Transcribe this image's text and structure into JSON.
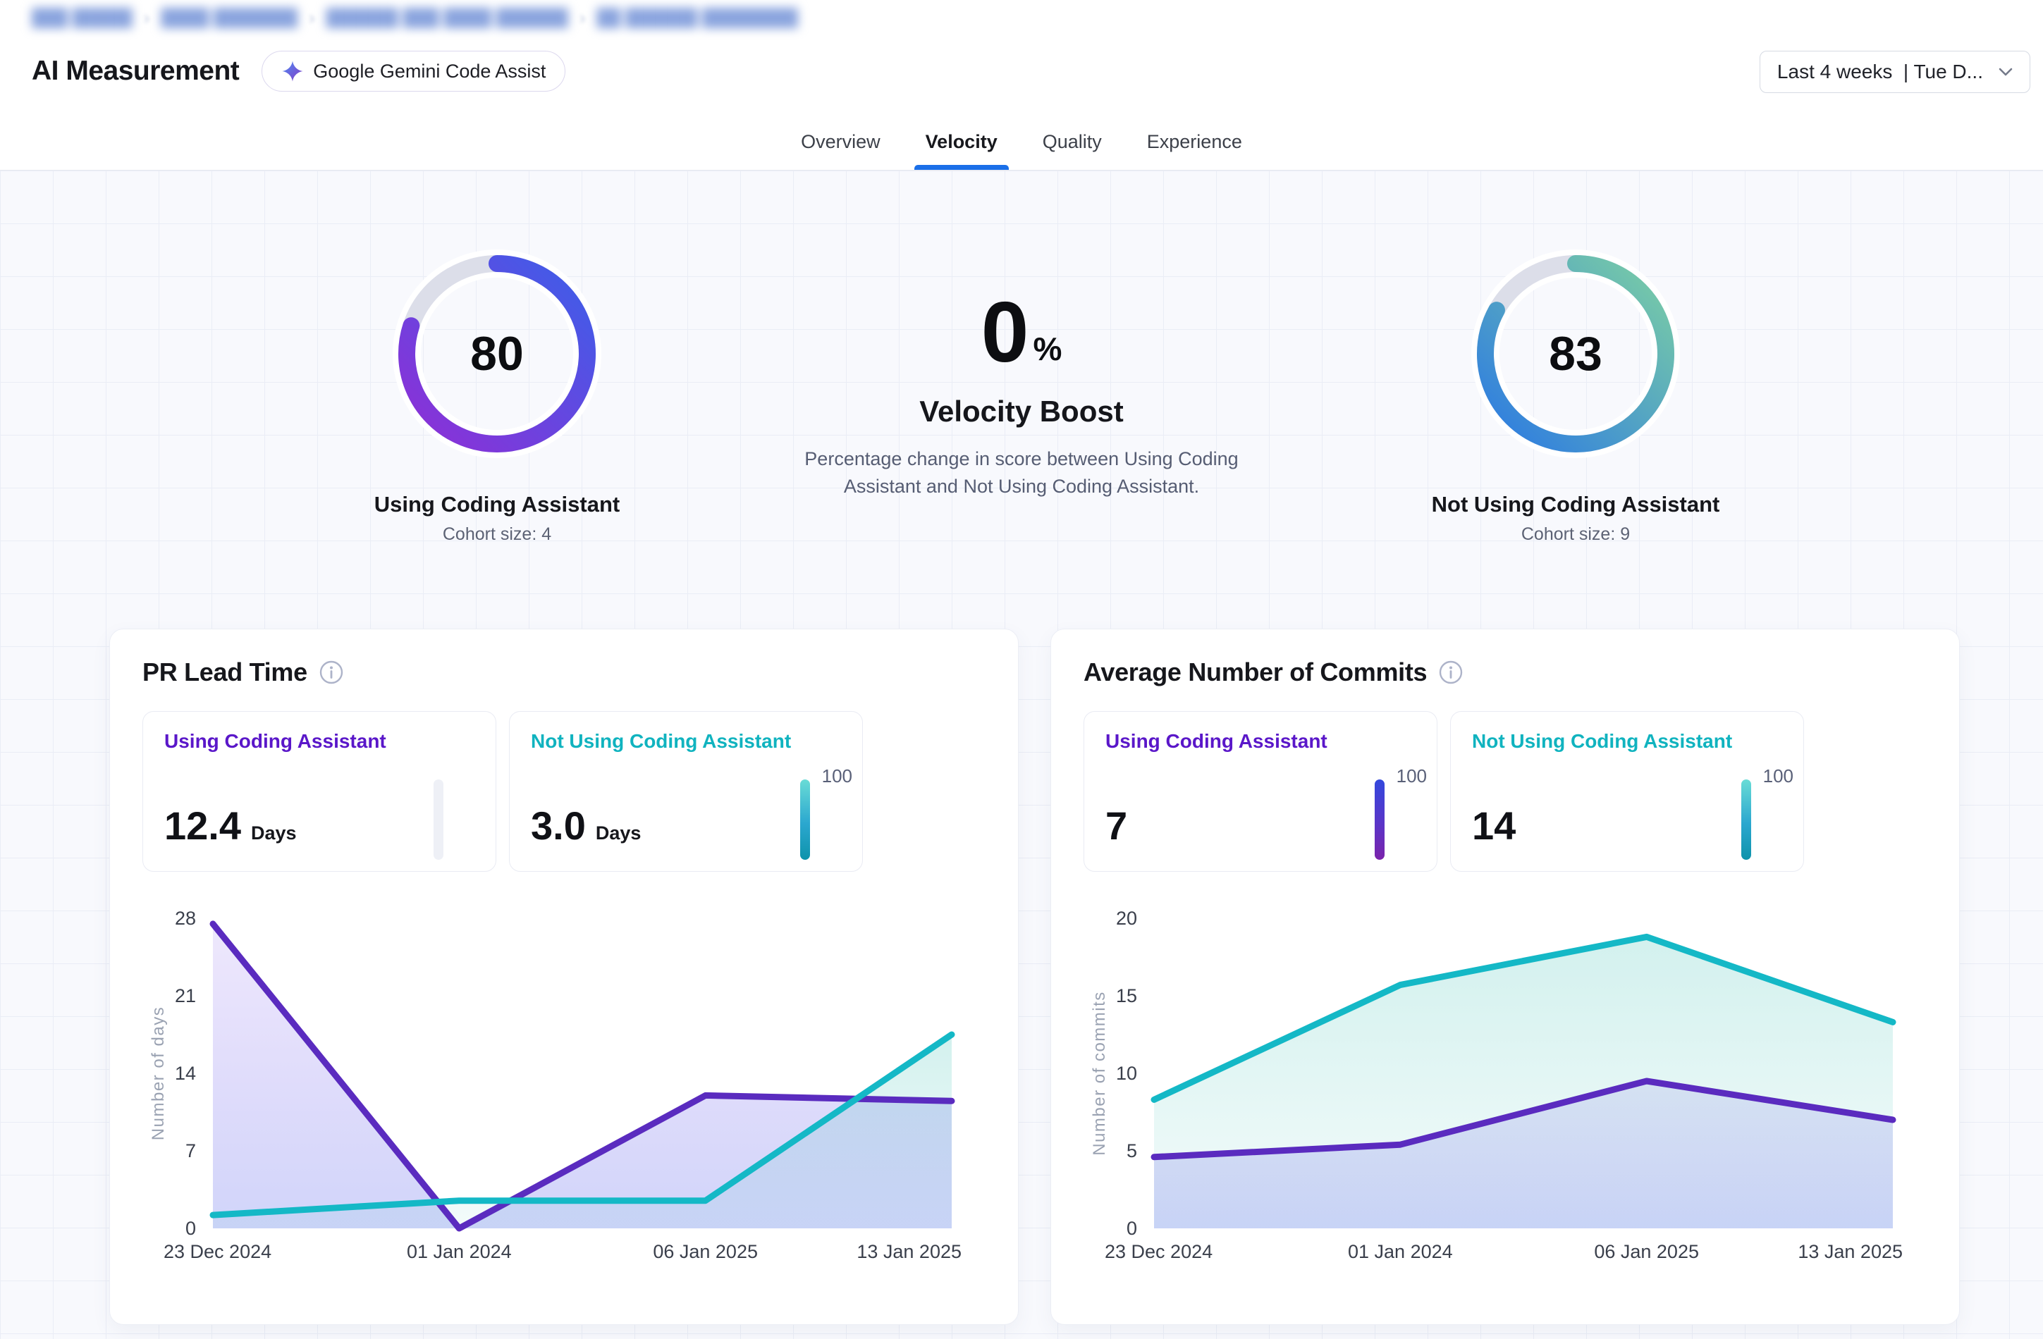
{
  "breadcrumb": {
    "segments": [
      "███ █████",
      "████ ███████",
      "██████ ███ ████ ██████",
      "██ ██████ ████████"
    ],
    "separator": "›"
  },
  "header": {
    "title": "AI Measurement",
    "badge": {
      "label": "Google Gemini Code Assist",
      "icon": "gemini-sparkle-icon"
    },
    "date_filter": {
      "value": "Last 4 weeks  | Tue D...",
      "icon": "chevron-down-icon"
    }
  },
  "tabs": [
    {
      "label": "Overview",
      "active": false
    },
    {
      "label": "Velocity",
      "active": true
    },
    {
      "label": "Quality",
      "active": false
    },
    {
      "label": "Experience",
      "active": false
    }
  ],
  "summary": {
    "left_gauge": {
      "value": "80",
      "percent": 80,
      "label": "Using Coding Assistant",
      "cohort": "Cohort size: 4",
      "gradient_from": "#8f2ed6",
      "gradient_to": "#3c5fe9"
    },
    "boost": {
      "value": "0",
      "unit": "%",
      "title": "Velocity Boost",
      "description": "Percentage change in score between Using Coding Assistant and Not Using Coding Assistant."
    },
    "right_gauge": {
      "value": "83",
      "percent": 83,
      "label": "Not Using Coding Assistant",
      "cohort": "Cohort size: 9",
      "gradient_from": "#2b79e3",
      "gradient_to": "#7ccfa4"
    }
  },
  "cards": [
    {
      "title": "PR Lead Time",
      "stats": [
        {
          "label": "Using Coding Assistant",
          "value": "12.4",
          "suffix": "Days",
          "theme": "purple",
          "bar": {
            "type": "empty",
            "label": ""
          }
        },
        {
          "label": "Not Using Coding Assistant",
          "value": "3.0",
          "suffix": "Days",
          "theme": "teal",
          "bar": {
            "type": "teal",
            "label": "100"
          }
        }
      ]
    },
    {
      "title": "Average Number of Commits",
      "stats": [
        {
          "label": "Using Coding Assistant",
          "value": "7",
          "suffix": "",
          "theme": "purple",
          "bar": {
            "type": "purple",
            "label": "100"
          }
        },
        {
          "label": "Not Using Coding Assistant",
          "value": "14",
          "suffix": "",
          "theme": "teal",
          "bar": {
            "type": "teal",
            "label": "100"
          }
        }
      ]
    }
  ],
  "chart_data": [
    {
      "type": "area",
      "title": "PR Lead Time",
      "xlabel": "",
      "ylabel": "Number of days",
      "categories": [
        "23 Dec 2024",
        "01 Jan 2024",
        "06 Jan 2025",
        "13 Jan 2025"
      ],
      "yticks": [
        0,
        7,
        14,
        21,
        28
      ],
      "ylim": [
        0,
        28
      ],
      "grid": false,
      "legend_position": "none",
      "series": [
        {
          "name": "Using Coding Assistant",
          "color": "#5a2bbf",
          "fill_top": "rgba(122,77,235,0.13)",
          "fill_bottom": "rgba(101,115,238,0.30)",
          "values": [
            27.5,
            0,
            12,
            11.5
          ]
        },
        {
          "name": "Not Using Coding Assistant",
          "color": "#14b8c6",
          "fill_top": "rgba(34,184,170,0.20)",
          "fill_bottom": "rgba(34,184,170,0.05)",
          "values": [
            1.2,
            2.5,
            2.5,
            17.5
          ]
        }
      ]
    },
    {
      "type": "area",
      "title": "Average Number of Commits",
      "xlabel": "",
      "ylabel": "Number of commits",
      "categories": [
        "23 Dec 2024",
        "01 Jan 2024",
        "06 Jan 2025",
        "13 Jan 2025"
      ],
      "yticks": [
        0,
        5,
        10,
        15,
        20
      ],
      "ylim": [
        0,
        20
      ],
      "grid": false,
      "legend_position": "none",
      "series": [
        {
          "name": "Using Coding Assistant",
          "color": "#5a2bbf",
          "fill_top": "rgba(122,77,235,0.13)",
          "fill_bottom": "rgba(101,115,238,0.30)",
          "values": [
            4.6,
            5.4,
            9.5,
            7
          ]
        },
        {
          "name": "Not Using Coding Assistant",
          "color": "#14b8c6",
          "fill_top": "rgba(34,184,170,0.20)",
          "fill_bottom": "rgba(34,184,170,0.05)",
          "values": [
            8.3,
            15.7,
            18.8,
            13.3
          ]
        }
      ]
    }
  ],
  "colors": {
    "tab_active_underline": "#1a6fe8",
    "purple_accent": "#5a17c9",
    "teal_accent": "#10b3bf",
    "page_background": "#f8f9fd",
    "grid_line": "#eaedf6"
  }
}
